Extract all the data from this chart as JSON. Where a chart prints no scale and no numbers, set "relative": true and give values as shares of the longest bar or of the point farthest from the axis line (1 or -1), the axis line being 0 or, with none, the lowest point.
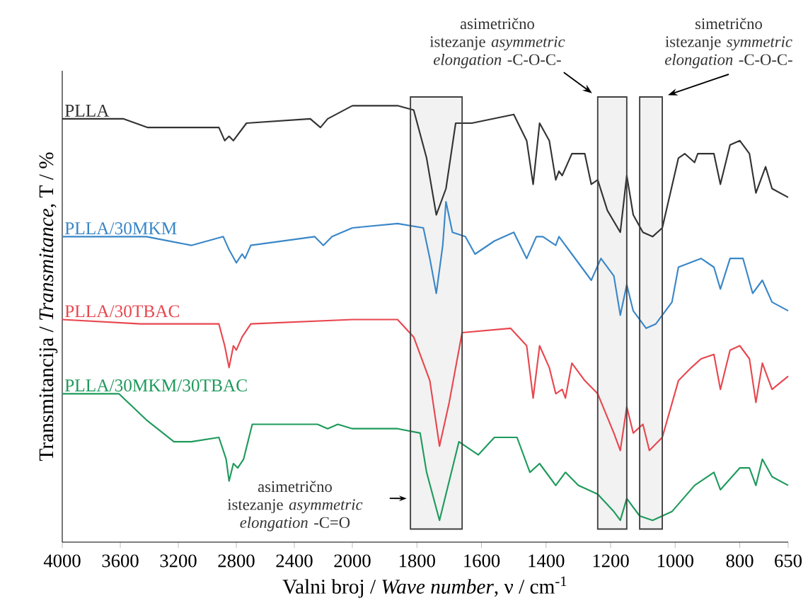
{
  "chart_data": [
    {
      "type": "line",
      "relative": true,
      "ylabel": "Transmitancija / *Transmitance*, T / %",
      "xlim": [
        4000,
        2000
      ],
      "xticks": [
        4000,
        3600,
        3200,
        2800,
        2400
      ],
      "series": [
        {
          "name": "PLLA",
          "color": "#333333",
          "x": [
            4000,
            3580,
            3410,
            3300,
            2920,
            2880,
            2850,
            2820,
            2730,
            2290,
            2220,
            2170,
            2000
          ],
          "values": [
            0.97,
            0.97,
            0.95,
            0.95,
            0.95,
            0.92,
            0.93,
            0.92,
            0.96,
            0.97,
            0.95,
            0.97,
            1.0
          ]
        },
        {
          "name": "PLLA/30MKM",
          "color": "#3a87c8",
          "x": [
            4000,
            3420,
            3110,
            2890,
            2850,
            2800,
            2760,
            2740,
            2700,
            2260,
            2200,
            2140,
            2000
          ],
          "values": [
            0.7,
            0.7,
            0.68,
            0.7,
            0.67,
            0.64,
            0.66,
            0.65,
            0.68,
            0.7,
            0.68,
            0.7,
            0.72
          ]
        },
        {
          "name": "PLLA/30TBAC",
          "color": "#e8474f",
          "x": [
            4000,
            3460,
            3390,
            3300,
            2920,
            2880,
            2850,
            2820,
            2800,
            2760,
            2700,
            2000
          ],
          "values": [
            0.51,
            0.5,
            0.5,
            0.5,
            0.5,
            0.45,
            0.4,
            0.45,
            0.44,
            0.47,
            0.5,
            0.51
          ]
        },
        {
          "name": "PLLA/30MKM/30TBAC",
          "color": "#1f9a5c",
          "x": [
            4000,
            3610,
            3420,
            3230,
            3110,
            2920,
            2870,
            2850,
            2820,
            2790,
            2750,
            2690,
            2240,
            2170,
            2100,
            2000
          ],
          "values": [
            0.34,
            0.34,
            0.28,
            0.23,
            0.23,
            0.24,
            0.19,
            0.14,
            0.18,
            0.17,
            0.19,
            0.27,
            0.27,
            0.26,
            0.27,
            0.26
          ]
        }
      ]
    },
    {
      "type": "line",
      "relative": true,
      "xlabel": "Valni broj / *Wave number*, ν / cm$^{-1}$",
      "xlim": [
        2000,
        650
      ],
      "xticks": [
        2000,
        1800,
        1600,
        1400,
        1200,
        1000,
        800,
        650
      ],
      "series": [
        {
          "color": "#333333",
          "x": [
            2000,
            1860,
            1810,
            1770,
            1740,
            1710,
            1680,
            1630,
            1500,
            1460,
            1440,
            1420,
            1390,
            1370,
            1360,
            1350,
            1320,
            1280,
            1260,
            1240,
            1210,
            1170,
            1150,
            1130,
            1100,
            1070,
            1040,
            990,
            970,
            940,
            930,
            880,
            860,
            830,
            800,
            770,
            750,
            720,
            700,
            650
          ],
          "values": [
            1.0,
            1.0,
            0.99,
            0.88,
            0.75,
            0.81,
            0.96,
            0.96,
            0.98,
            0.92,
            0.82,
            0.96,
            0.92,
            0.83,
            0.85,
            0.84,
            0.89,
            0.89,
            0.82,
            0.83,
            0.76,
            0.71,
            0.84,
            0.75,
            0.71,
            0.7,
            0.72,
            0.88,
            0.89,
            0.87,
            0.89,
            0.89,
            0.82,
            0.91,
            0.92,
            0.89,
            0.8,
            0.86,
            0.81,
            0.79
          ]
        },
        {
          "color": "#3a87c8",
          "x": [
            2000,
            1860,
            1780,
            1760,
            1740,
            1720,
            1710,
            1690,
            1650,
            1620,
            1560,
            1500,
            1460,
            1430,
            1410,
            1370,
            1360,
            1320,
            1260,
            1230,
            1190,
            1170,
            1150,
            1130,
            1090,
            1060,
            1010,
            990,
            920,
            880,
            860,
            830,
            790,
            760,
            730,
            700,
            650
          ],
          "values": [
            0.72,
            0.73,
            0.72,
            0.65,
            0.57,
            0.68,
            0.78,
            0.71,
            0.7,
            0.66,
            0.69,
            0.71,
            0.65,
            0.7,
            0.7,
            0.68,
            0.7,
            0.66,
            0.6,
            0.65,
            0.61,
            0.52,
            0.59,
            0.53,
            0.49,
            0.5,
            0.55,
            0.63,
            0.65,
            0.63,
            0.58,
            0.65,
            0.65,
            0.57,
            0.6,
            0.55,
            0.53
          ]
        },
        {
          "color": "#e8474f",
          "x": [
            2000,
            1860,
            1810,
            1760,
            1730,
            1700,
            1660,
            1510,
            1460,
            1440,
            1420,
            1390,
            1370,
            1350,
            1340,
            1320,
            1280,
            1240,
            1190,
            1170,
            1150,
            1130,
            1100,
            1080,
            1040,
            990,
            950,
            920,
            880,
            860,
            830,
            800,
            770,
            750,
            730,
            700,
            650
          ],
          "values": [
            0.51,
            0.51,
            0.47,
            0.37,
            0.22,
            0.32,
            0.48,
            0.49,
            0.45,
            0.33,
            0.45,
            0.4,
            0.34,
            0.35,
            0.33,
            0.41,
            0.37,
            0.34,
            0.25,
            0.21,
            0.31,
            0.25,
            0.27,
            0.21,
            0.24,
            0.37,
            0.4,
            0.42,
            0.43,
            0.35,
            0.44,
            0.45,
            0.42,
            0.32,
            0.41,
            0.35,
            0.38
          ]
        },
        {
          "color": "#1f9a5c",
          "x": [
            2000,
            1860,
            1790,
            1770,
            1730,
            1700,
            1670,
            1610,
            1560,
            1490,
            1450,
            1420,
            1390,
            1370,
            1340,
            1300,
            1240,
            1190,
            1170,
            1150,
            1110,
            1070,
            1010,
            940,
            880,
            860,
            800,
            770,
            750,
            730,
            700,
            650
          ],
          "values": [
            0.26,
            0.26,
            0.25,
            0.16,
            0.05,
            0.14,
            0.23,
            0.2,
            0.24,
            0.24,
            0.16,
            0.18,
            0.15,
            0.13,
            0.16,
            0.13,
            0.11,
            0.07,
            0.05,
            0.1,
            0.06,
            0.05,
            0.07,
            0.13,
            0.16,
            0.12,
            0.17,
            0.17,
            0.13,
            0.19,
            0.15,
            0.13
          ]
        }
      ],
      "bands": [
        {
          "axis": "x",
          "from": 1820,
          "to": 1660,
          "label": "asimetrično istezanje *asymmetric elongation* -C=O"
        },
        {
          "axis": "x",
          "from": 1240,
          "to": 1150,
          "label": "asimetrično istezanje *asymmetric elongation* -C-O-C-"
        },
        {
          "axis": "x",
          "from": 1110,
          "to": 1040,
          "label": "simetrično istezanje *symmetric elongation* -C-O-C-"
        }
      ]
    }
  ]
}
